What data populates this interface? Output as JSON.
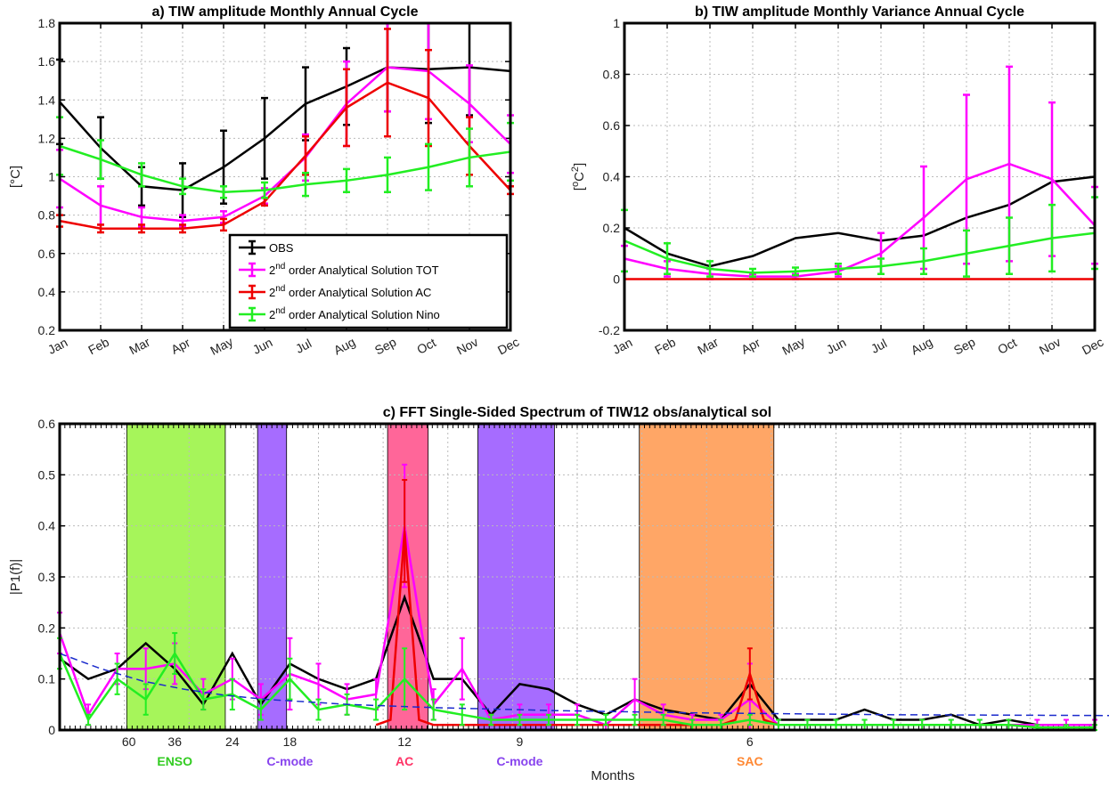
{
  "chart_data": [
    {
      "type": "line",
      "title": "a) TIW amplitude Monthly Annual Cycle",
      "ylabel": "[°C]",
      "ylim": [
        0.2,
        1.8
      ],
      "yticks": [
        "0.2",
        "0.4",
        "0.6",
        "0.8",
        "1",
        "1.2",
        "1.4",
        "1.6",
        "1.8"
      ],
      "categories": [
        "Jan",
        "Feb",
        "Mar",
        "Apr",
        "May",
        "Jun",
        "Jul",
        "Aug",
        "Sep",
        "Oct",
        "Nov",
        "Dec"
      ],
      "grid": true,
      "legend": "bottom-right",
      "series": [
        {
          "name": "OBS",
          "color": "#000000",
          "values": [
            1.39,
            1.15,
            0.95,
            0.93,
            1.05,
            1.2,
            1.38,
            1.47,
            1.57,
            1.56,
            1.57,
            1.55
          ],
          "err": [
            0.22,
            0.16,
            0.1,
            0.14,
            0.19,
            0.21,
            0.19,
            0.2,
            0.23,
            0.28,
            0.25,
            0.0
          ]
        },
        {
          "name_sup": "nd",
          "name_pre": "2",
          "name_post": " order Analytical Solution TOT",
          "color": "#ff00ff",
          "values": [
            0.99,
            0.85,
            0.79,
            0.77,
            0.79,
            0.9,
            1.1,
            1.38,
            1.57,
            1.55,
            1.38,
            1.17
          ],
          "err": [
            0.15,
            0.1,
            0.05,
            0.03,
            0.03,
            0.04,
            0.12,
            0.22,
            0.23,
            0.25,
            0.2,
            0.15
          ]
        },
        {
          "name_sup": "nd",
          "name_pre": "2",
          "name_post": " order Analytical Solution AC",
          "color": "#ee0000",
          "values": [
            0.77,
            0.73,
            0.73,
            0.73,
            0.75,
            0.87,
            1.11,
            1.36,
            1.49,
            1.41,
            1.16,
            0.93
          ],
          "err": [
            0.03,
            0.02,
            0.02,
            0.02,
            0.03,
            0.02,
            0.1,
            0.2,
            0.28,
            0.25,
            0.15,
            0.02
          ]
        },
        {
          "name_sup": "nd",
          "name_pre": "2",
          "name_post": " order Analytical Solution Nino",
          "color": "#22ee22",
          "values": [
            1.16,
            1.09,
            1.01,
            0.95,
            0.92,
            0.93,
            0.96,
            0.98,
            1.01,
            1.05,
            1.1,
            1.13
          ],
          "err": [
            0.15,
            0.1,
            0.06,
            0.04,
            0.03,
            0.04,
            0.06,
            0.06,
            0.09,
            0.12,
            0.15,
            0.15
          ]
        }
      ]
    },
    {
      "type": "line",
      "title": "b) TIW amplitude Monthly Variance Annual Cycle",
      "ylabel_pre": "[",
      "ylabel_sup1": "o",
      "ylabel_mid": "C",
      "ylabel_sup2": "2",
      "ylabel_post": "]",
      "ylim": [
        -0.2,
        1.0
      ],
      "yticks": [
        "-0.2",
        "0",
        "0.2",
        "0.4",
        "0.6",
        "0.8",
        "1"
      ],
      "categories": [
        "Jan",
        "Feb",
        "Mar",
        "Apr",
        "May",
        "Jun",
        "Jul",
        "Aug",
        "Sep",
        "Oct",
        "Nov",
        "Dec"
      ],
      "grid": true,
      "series": [
        {
          "color": "#000000",
          "values": [
            0.2,
            0.1,
            0.05,
            0.09,
            0.16,
            0.18,
            0.15,
            0.17,
            0.24,
            0.29,
            0.38,
            0.4
          ],
          "err": [
            0,
            0,
            0,
            0,
            0,
            0,
            0,
            0,
            0,
            0,
            0,
            0
          ]
        },
        {
          "color": "#ff00ff",
          "values": [
            0.08,
            0.04,
            0.02,
            0.01,
            0.01,
            0.03,
            0.1,
            0.24,
            0.39,
            0.45,
            0.39,
            0.21
          ],
          "err": [
            0.05,
            0.03,
            0.02,
            0.01,
            0.01,
            0.02,
            0.08,
            0.2,
            0.33,
            0.38,
            0.3,
            0.15
          ]
        },
        {
          "color": "#ee0000",
          "values": [
            0,
            0,
            0,
            0,
            0,
            0,
            0,
            0,
            0,
            0,
            0,
            0
          ],
          "err": [
            0,
            0,
            0,
            0,
            0,
            0,
            0,
            0,
            0,
            0,
            0,
            0
          ]
        },
        {
          "color": "#22ee22",
          "values": [
            0.15,
            0.08,
            0.04,
            0.025,
            0.03,
            0.04,
            0.05,
            0.07,
            0.1,
            0.13,
            0.16,
            0.18
          ],
          "err": [
            0.12,
            0.06,
            0.03,
            0.015,
            0.015,
            0.02,
            0.03,
            0.05,
            0.09,
            0.11,
            0.13,
            0.14
          ]
        }
      ]
    },
    {
      "type": "line",
      "title": "c) FFT Single-Sided Spectrum of TIW12 obs/analytical sol",
      "ylabel": "|P1(f)|",
      "xlabel": "Months",
      "ylim": [
        0,
        0.6
      ],
      "xlim": [
        0,
        0.5
      ],
      "yticks": [
        "0",
        "0.1",
        "0.2",
        "0.3",
        "0.4",
        "0.5",
        "0.6"
      ],
      "xticks": [
        {
          "label": "60",
          "x": 0.0167
        },
        {
          "label": "36",
          "x": 0.0278
        },
        {
          "label": "24",
          "x": 0.0417
        },
        {
          "label": "18",
          "x": 0.0556
        },
        {
          "label": "12",
          "x": 0.0833
        },
        {
          "label": "9",
          "x": 0.1111
        },
        {
          "label": "6",
          "x": 0.1667
        }
      ],
      "bands": [
        {
          "label": "ENSO",
          "x0": 0.0162,
          "x1": 0.04,
          "color": "#a6f55a",
          "text_color": "#33cc22",
          "label_x": 0.0278
        },
        {
          "label": "C-mode",
          "x0": 0.0478,
          "x1": 0.0548,
          "color": "#a66cff",
          "text_color": "#8844ee",
          "label_x": 0.0556
        },
        {
          "label": "AC",
          "x0": 0.0792,
          "x1": 0.089,
          "color": "#ff6699",
          "text_color": "#ff3366",
          "label_x": 0.0833
        },
        {
          "label": "C-mode",
          "x0": 0.101,
          "x1": 0.1195,
          "color": "#a66cff",
          "text_color": "#8844ee",
          "label_x": 0.1111
        },
        {
          "label": "SAC",
          "x0": 0.14,
          "x1": 0.1725,
          "color": "#ffa666",
          "text_color": "#ff8833",
          "label_x": 0.1667
        }
      ],
      "series": [
        {
          "name": "OBS",
          "color": "#000000",
          "x": [
            0.0,
            0.0069,
            0.0139,
            0.0208,
            0.0278,
            0.0347,
            0.0417,
            0.0486,
            0.0556,
            0.0625,
            0.0694,
            0.0764,
            0.0833,
            0.0903,
            0.0972,
            0.1042,
            0.1111,
            0.1181,
            0.125,
            0.1319,
            0.1389,
            0.1458,
            0.1528,
            0.1597,
            0.1667,
            0.1736,
            0.1806,
            0.1875,
            0.1944,
            0.2014,
            0.2083,
            0.2153,
            0.2222,
            0.2292,
            0.2361,
            0.2431,
            0.25
          ],
          "values": [
            0.14,
            0.1,
            0.12,
            0.17,
            0.12,
            0.05,
            0.15,
            0.05,
            0.13,
            0.1,
            0.08,
            0.1,
            0.26,
            0.1,
            0.1,
            0.03,
            0.09,
            0.08,
            0.05,
            0.03,
            0.06,
            0.04,
            0.03,
            0.02,
            0.09,
            0.02,
            0.02,
            0.02,
            0.04,
            0.02,
            0.02,
            0.03,
            0.01,
            0.02,
            0.01,
            0.01,
            0.01
          ]
        },
        {
          "name": "TOT",
          "color": "#ff00ff",
          "x": [
            0.0,
            0.0069,
            0.0139,
            0.0208,
            0.0278,
            0.0347,
            0.0417,
            0.0486,
            0.0556,
            0.0625,
            0.0694,
            0.0764,
            0.0833,
            0.0903,
            0.0972,
            0.1042,
            0.1111,
            0.1181,
            0.125,
            0.1319,
            0.1389,
            0.1458,
            0.1528,
            0.1597,
            0.1667,
            0.1736,
            0.1806,
            0.1875,
            0.1944,
            0.2014,
            0.2083,
            0.2153,
            0.2222,
            0.2292,
            0.2361,
            0.2431,
            0.25
          ],
          "values": [
            0.19,
            0.03,
            0.12,
            0.12,
            0.13,
            0.07,
            0.1,
            0.06,
            0.11,
            0.09,
            0.06,
            0.07,
            0.4,
            0.05,
            0.12,
            0.02,
            0.03,
            0.03,
            0.03,
            0.01,
            0.06,
            0.03,
            0.02,
            0.02,
            0.06,
            0.01,
            0.01,
            0.01,
            0.01,
            0.01,
            0.01,
            0.01,
            0.01,
            0.01,
            0.01,
            0.01,
            0.01
          ],
          "err": [
            0.04,
            0.02,
            0.03,
            0.04,
            0.04,
            0.03,
            0.04,
            0.03,
            0.07,
            0.04,
            0.03,
            0.03,
            0.12,
            0.03,
            0.06,
            0.01,
            0.02,
            0.02,
            0.02,
            0.01,
            0.04,
            0.02,
            0.01,
            0.01,
            0.07,
            0.01,
            0.01,
            0.01,
            0.01,
            0.01,
            0.01,
            0.01,
            0.01,
            0.01,
            0.01,
            0.01,
            0.01
          ]
        },
        {
          "name": "AC",
          "color": "#ee0000",
          "x": [
            0.0764,
            0.0799,
            0.0833,
            0.0868,
            0.0903,
            0.1597,
            0.1632,
            0.1667,
            0.1701,
            0.1736
          ],
          "values": [
            0.01,
            0.02,
            0.39,
            0.02,
            0.01,
            0.01,
            0.02,
            0.11,
            0.02,
            0.01
          ],
          "err": [
            0,
            0,
            0.1,
            0,
            0,
            0,
            0,
            0.05,
            0,
            0
          ]
        },
        {
          "name": "Nino",
          "color": "#22ee22",
          "x": [
            0.0,
            0.0069,
            0.0139,
            0.0208,
            0.0278,
            0.0347,
            0.0417,
            0.0486,
            0.0556,
            0.0625,
            0.0694,
            0.0764,
            0.0833,
            0.0903,
            0.0972,
            0.1042,
            0.1111,
            0.1181,
            0.125,
            0.1319,
            0.1389,
            0.1458,
            0.1528,
            0.1597,
            0.1667,
            0.1736,
            0.1806,
            0.1875,
            0.1944,
            0.2014,
            0.2083,
            0.2153,
            0.2222,
            0.2292,
            0.2361,
            0.2431,
            0.25
          ],
          "values": [
            0.15,
            0.02,
            0.1,
            0.06,
            0.15,
            0.06,
            0.07,
            0.04,
            0.1,
            0.04,
            0.05,
            0.04,
            0.1,
            0.04,
            0.03,
            0.02,
            0.02,
            0.02,
            0.02,
            0.02,
            0.02,
            0.02,
            0.01,
            0.01,
            0.02,
            0.01,
            0.01,
            0.01,
            0.01,
            0.01,
            0.01,
            0.01,
            0.01,
            0.01,
            0.005,
            0.005,
            0.005
          ],
          "err": [
            0.03,
            0.01,
            0.03,
            0.03,
            0.04,
            0.02,
            0.03,
            0.02,
            0.04,
            0.02,
            0.02,
            0.02,
            0.06,
            0.02,
            0.02,
            0.01,
            0.01,
            0.01,
            0.01,
            0.01,
            0.01,
            0.01,
            0.01,
            0.01,
            0.01,
            0.01,
            0.01,
            0.01,
            0.01,
            0.01,
            0.01,
            0.01,
            0.01,
            0.01,
            0.005,
            0.005,
            0.005
          ]
        },
        {
          "name": "fit",
          "color": "#1a2acc",
          "dashed": true,
          "x": [
            0.0,
            0.01,
            0.02,
            0.03,
            0.04,
            0.05,
            0.07,
            0.09,
            0.12,
            0.15,
            0.2,
            0.3,
            0.4,
            0.5
          ],
          "values": [
            0.15,
            0.12,
            0.096,
            0.08,
            0.068,
            0.06,
            0.05,
            0.044,
            0.038,
            0.034,
            0.03,
            0.027,
            0.025,
            0.025
          ]
        }
      ]
    }
  ]
}
